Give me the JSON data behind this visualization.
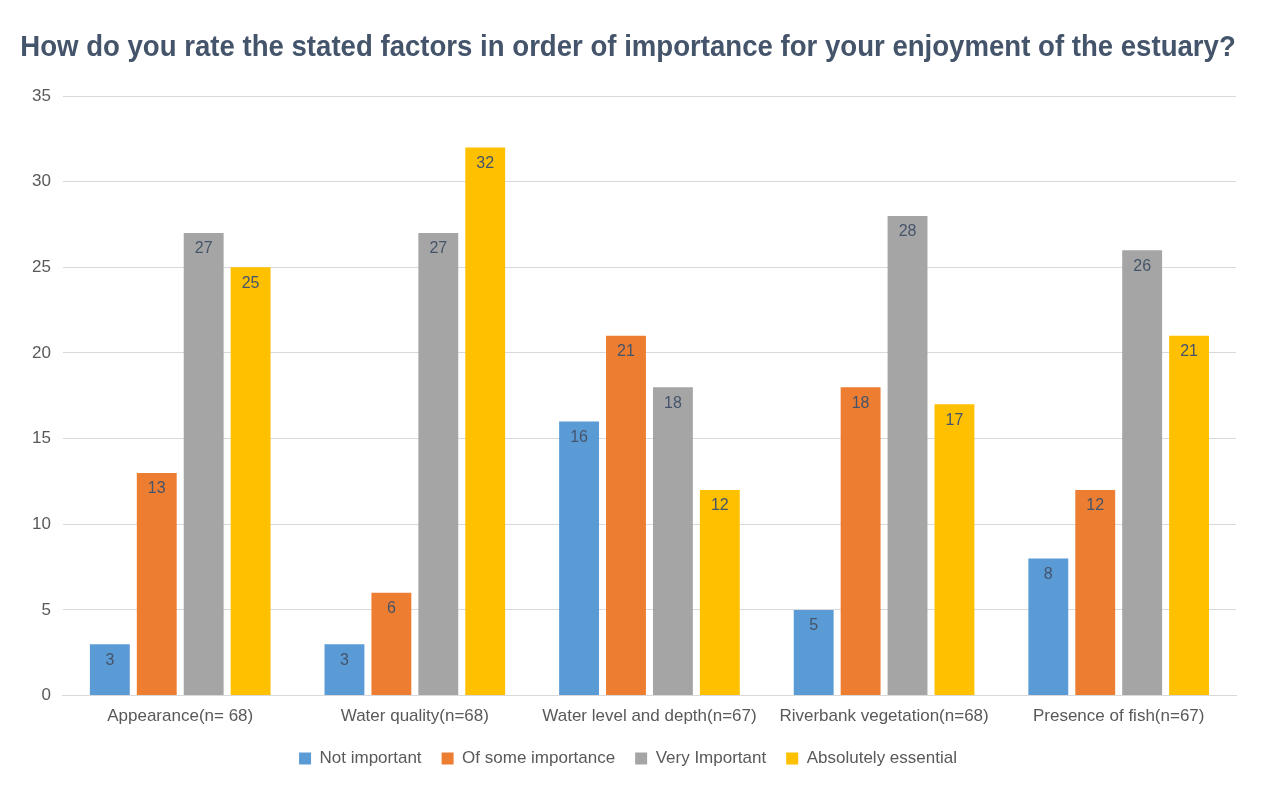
{
  "chart_data": {
    "type": "bar",
    "title": "How do you rate the stated factors in order of importance for your enjoyment of the estuary?",
    "categories": [
      "Appearance(n= 68)",
      "Water quality(n=68)",
      "Water level and depth(n=67)",
      "Riverbank vegetation(n=68)",
      "Presence of fish(n=67)"
    ],
    "series": [
      {
        "name": "Not important",
        "color": "#5b9bd5",
        "values": [
          3,
          3,
          16,
          5,
          8
        ]
      },
      {
        "name": "Of some importance",
        "color": "#ed7d31",
        "values": [
          13,
          6,
          21,
          18,
          12
        ]
      },
      {
        "name": "Very Important",
        "color": "#a5a5a5",
        "values": [
          27,
          27,
          18,
          28,
          26
        ]
      },
      {
        "name": "Absolutely essential",
        "color": "#ffc000",
        "values": [
          25,
          32,
          12,
          17,
          21
        ]
      }
    ],
    "ylim": [
      0,
      35
    ],
    "yticks": [
      0,
      5,
      10,
      15,
      20,
      25,
      30,
      35
    ],
    "grid": "y",
    "legend": "bottom",
    "data_labels": true
  }
}
